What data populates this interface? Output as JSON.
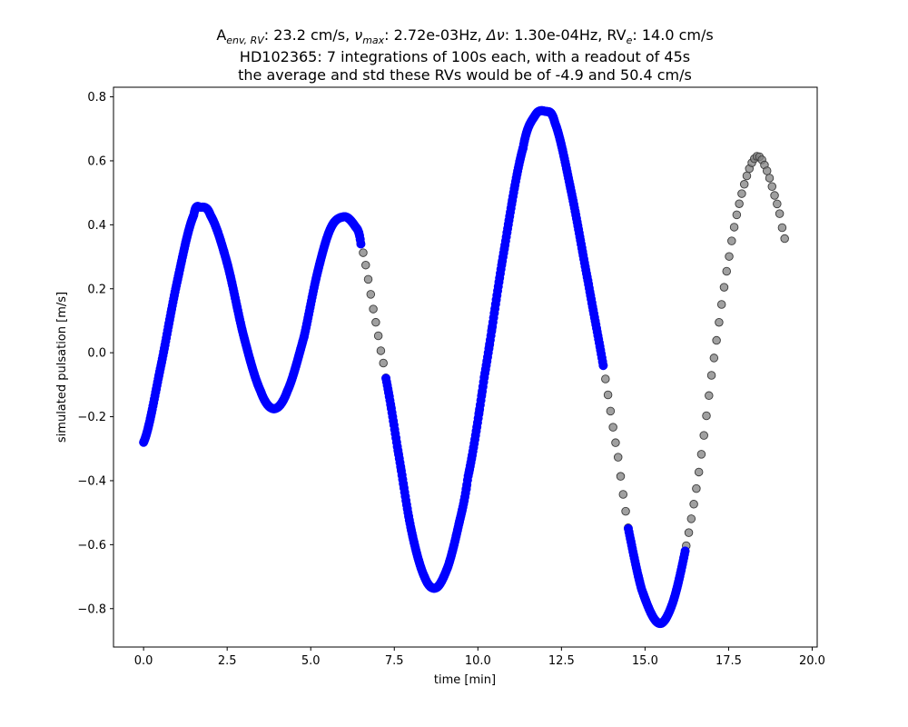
{
  "chart_data": {
    "type": "scatter",
    "title_lines": [
      "A_env,RV: 23.2 cm/s, ν_max: 2.72e-03Hz, Δν: 1.30e-04Hz, RV_e: 14.0 cm/s",
      "HD102365: 7 integrations of 100s each, with a readout of 45s",
      "the average and std these RVs would be of -4.9 and 50.4 cm/s"
    ],
    "title_parts": {
      "a_main": "A",
      "a_sub": "env, RV",
      "a_value": ": 23.2 cm/s, ",
      "nu_main": "ν",
      "nu_sub": "max",
      "nu_value": ": 2.72e-03Hz, ",
      "dnu": "Δν",
      "dnu_value": ": 1.30e-04Hz, ",
      "rve_main": "RV",
      "rve_sub": "e",
      "rve_value": ": 14.0 cm/s"
    },
    "xlabel": "time [min]",
    "ylabel": "simulated pulsation [m/s]",
    "xlim": [
      -0.9,
      20.15
    ],
    "ylim": [
      -0.92,
      0.83
    ],
    "xticks": [
      0.0,
      2.5,
      5.0,
      7.5,
      10.0,
      12.5,
      15.0,
      17.5,
      20.0
    ],
    "xtick_labels": [
      "0.0",
      "2.5",
      "5.0",
      "7.5",
      "10.0",
      "12.5",
      "15.0",
      "17.5",
      "20.0"
    ],
    "yticks": [
      -0.8,
      -0.6,
      -0.4,
      -0.2,
      0.0,
      0.2,
      0.4,
      0.6,
      0.8
    ],
    "ytick_labels": [
      "−0.8",
      "−0.6",
      "−0.4",
      "−0.2",
      "0.0",
      "0.2",
      "0.4",
      "0.6",
      "0.8"
    ],
    "grid": false,
    "series": [
      {
        "color": "#0000ff",
        "marker": "circle",
        "segments": [
          {
            "t_start": 0.0,
            "t_end": 2.4
          },
          {
            "t_start": 2.4,
            "t_end": 4.8
          },
          {
            "t_start": 4.8,
            "t_end": 6.5
          },
          {
            "t_start": 7.25,
            "t_end": 9.65
          },
          {
            "t_start": 9.65,
            "t_end": 11.35
          },
          {
            "t_start": 11.35,
            "t_end": 13.75
          },
          {
            "t_start": 14.5,
            "t_end": 16.2
          }
        ],
        "note_density": "dense"
      },
      {
        "color": "#808080",
        "marker": "circle",
        "segments": [
          {
            "t_start": 0.0,
            "t_end": 19.2
          }
        ],
        "note_density": "sparse"
      }
    ],
    "curve_points": [
      [
        0.0,
        -0.28
      ],
      [
        0.5,
        -0.05
      ],
      [
        1.0,
        0.22
      ],
      [
        1.5,
        0.43
      ],
      [
        1.7,
        0.455
      ],
      [
        2.0,
        0.43
      ],
      [
        2.5,
        0.28
      ],
      [
        3.0,
        0.05
      ],
      [
        3.5,
        -0.12
      ],
      [
        3.9,
        -0.175
      ],
      [
        4.3,
        -0.12
      ],
      [
        4.8,
        0.05
      ],
      [
        5.2,
        0.25
      ],
      [
        5.6,
        0.39
      ],
      [
        6.0,
        0.425
      ],
      [
        6.3,
        0.4
      ],
      [
        6.5,
        0.34
      ],
      [
        7.0,
        0.07
      ],
      [
        7.25,
        -0.08
      ],
      [
        7.6,
        -0.3
      ],
      [
        8.0,
        -0.55
      ],
      [
        8.4,
        -0.7
      ],
      [
        8.75,
        -0.735
      ],
      [
        9.1,
        -0.67
      ],
      [
        9.4,
        -0.55
      ],
      [
        9.7,
        -0.39
      ],
      [
        10.2,
        -0.07
      ],
      [
        10.8,
        0.33
      ],
      [
        11.35,
        0.64
      ],
      [
        11.7,
        0.74
      ],
      [
        12.0,
        0.755
      ],
      [
        12.3,
        0.72
      ],
      [
        12.8,
        0.5
      ],
      [
        13.3,
        0.22
      ],
      [
        13.75,
        -0.04
      ],
      [
        14.2,
        -0.33
      ],
      [
        14.5,
        -0.55
      ],
      [
        14.9,
        -0.74
      ],
      [
        15.4,
        -0.845
      ],
      [
        15.8,
        -0.79
      ],
      [
        16.2,
        -0.62
      ],
      [
        16.6,
        -0.38
      ],
      [
        17.0,
        -0.06
      ],
      [
        17.5,
        0.29
      ],
      [
        17.9,
        0.5
      ],
      [
        18.3,
        0.61
      ],
      [
        18.6,
        0.58
      ],
      [
        19.0,
        0.45
      ],
      [
        19.2,
        0.35
      ]
    ]
  }
}
